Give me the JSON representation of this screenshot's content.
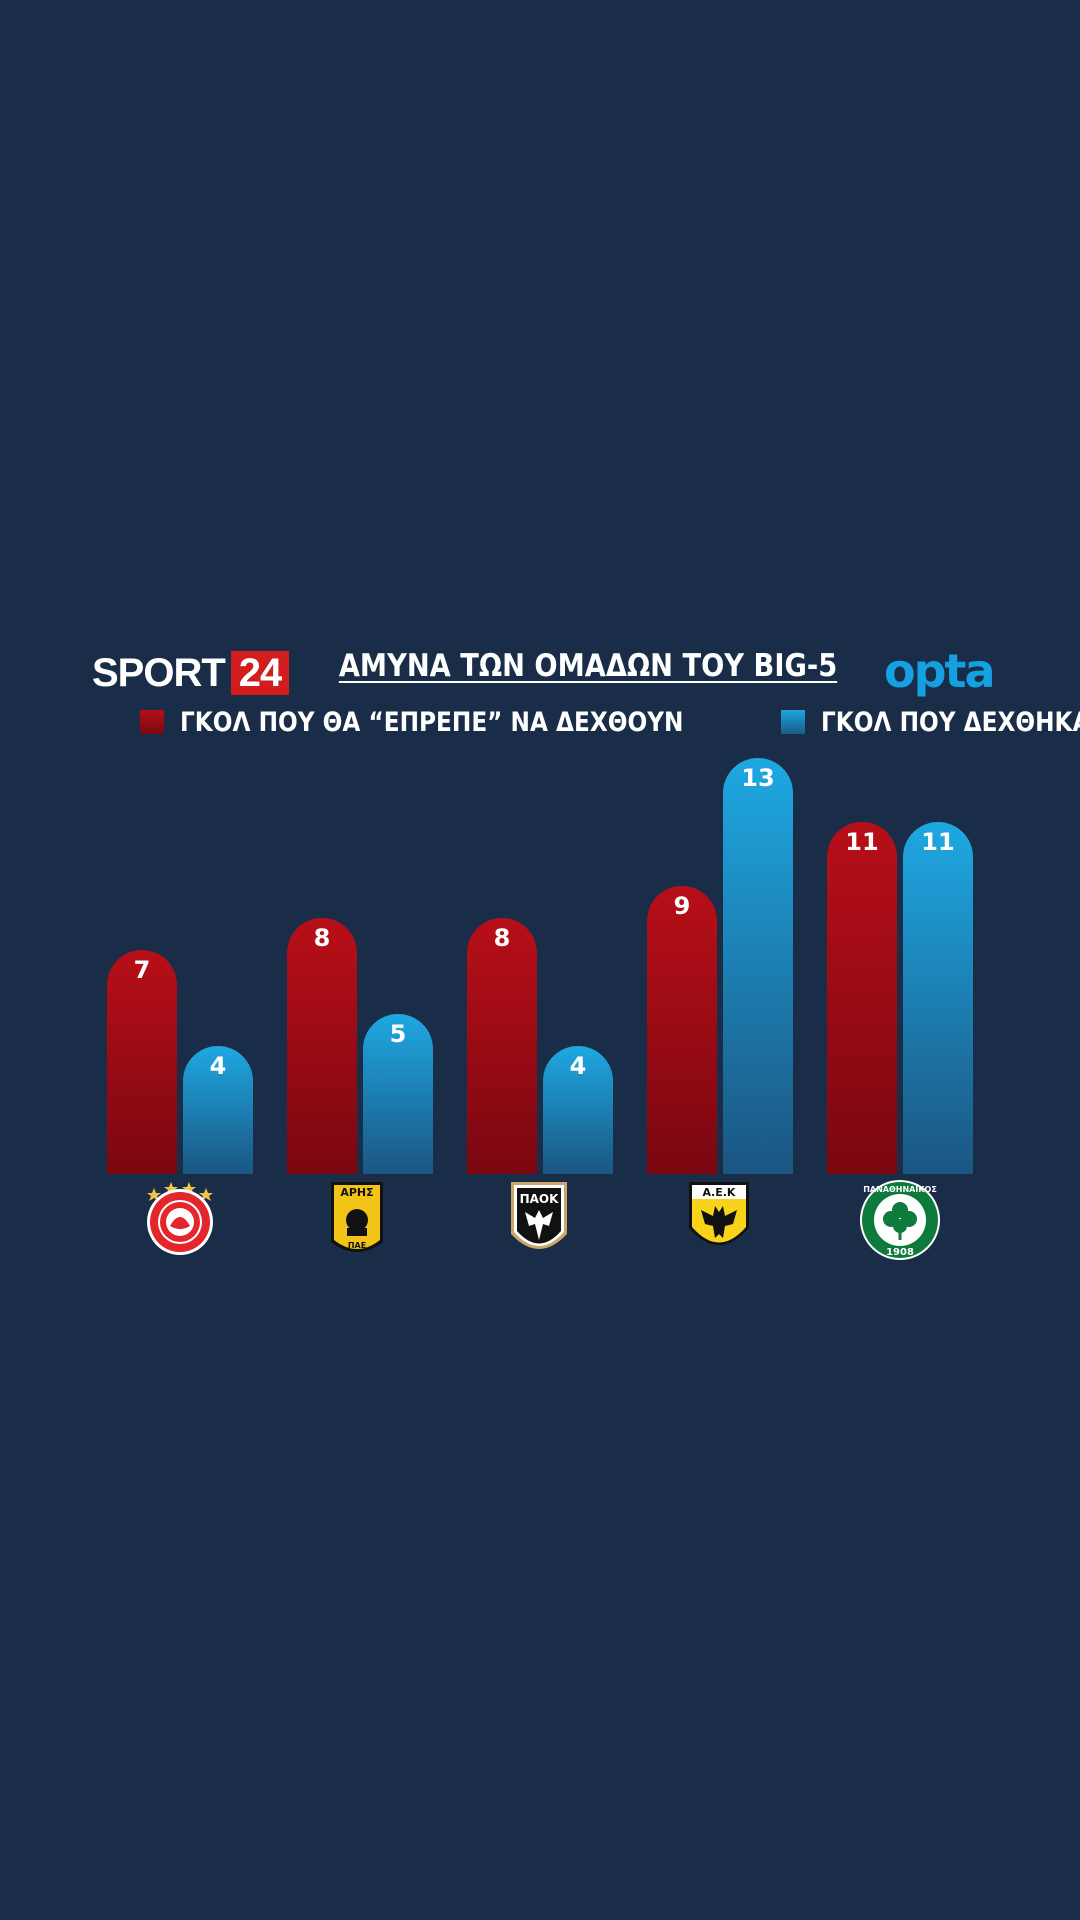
{
  "header": {
    "brand_word": "SPORT",
    "brand_number": "24",
    "title": "ΑΜΥΝΑ ΤΩΝ ΟΜΑΔΩΝ ΤΟΥ BIG-5",
    "partner_logo": "opta"
  },
  "legend": [
    {
      "label": "ΓΚΟΛ ΠΟΥ ΘΑ “ΕΠΡΕΠΕ” ΝΑ ΔΕΧΘΟΥΝ",
      "color": "#b50f17"
    },
    {
      "label": "ΓΚΟΛ ΠΟΥ ΔΕΧΘΗΚΑΝ",
      "color": "#1ea6e0"
    }
  ],
  "chart_data": {
    "type": "bar",
    "title": "ΑΜΥΝΑ ΤΩΝ ΟΜΑΔΩΝ ΤΟΥ BIG-5",
    "categories": [
      "olympiacos-crest",
      "aris-crest",
      "paok-crest",
      "aek-crest",
      "panathinaikos-crest"
    ],
    "series": [
      {
        "name": "ΓΚΟΛ ΠΟΥ ΘΑ “ΕΠΡΕΠΕ” ΝΑ ΔΕΧΘΟΥΝ",
        "color": "#b50f17",
        "values": [
          7,
          8,
          8,
          9,
          11
        ]
      },
      {
        "name": "ΓΚΟΛ ΠΟΥ ΔΕΧΘΗΚΑΝ",
        "color": "#1ea6e0",
        "values": [
          4,
          5,
          4,
          13,
          11
        ]
      }
    ],
    "ylim": [
      0,
      13
    ],
    "grid": false,
    "legend_position": "top"
  },
  "crests": {
    "aris": {
      "top": "ΑΡΗΣ",
      "bottom": "ΠΑΕ"
    },
    "paok": {
      "text": "ΠΑΟΚ"
    },
    "aek": {
      "text": "Α.Ε.Κ"
    },
    "panathinaikos": {
      "ring": "ΠΑΝΑΘΗΝΑΪΚΟΣ",
      "year": "1908"
    }
  }
}
